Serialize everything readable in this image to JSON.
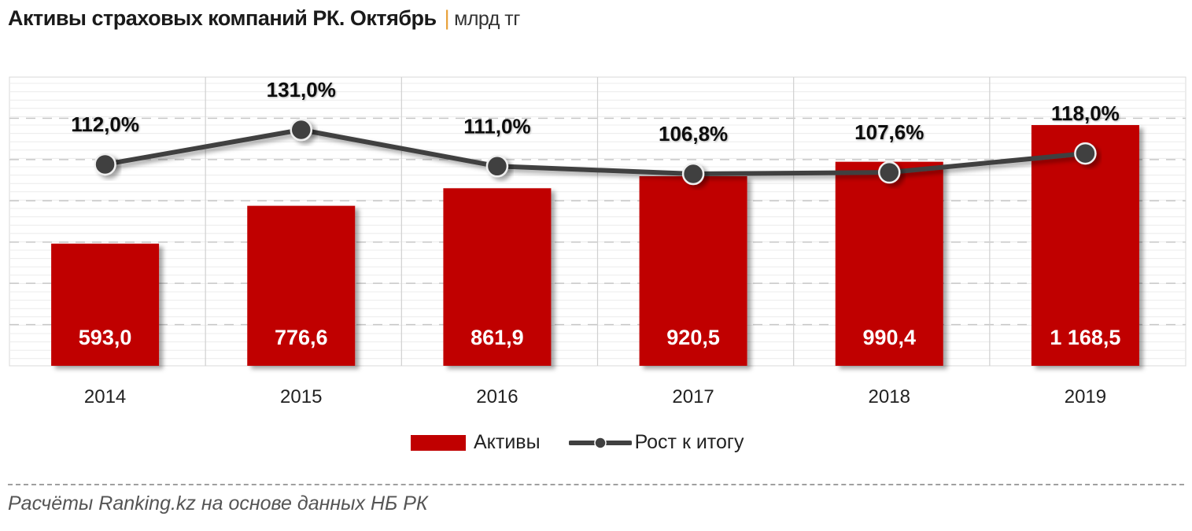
{
  "title": {
    "main": "Активы страховых компаний РК. Октябрь",
    "separator": "|",
    "unit": "млрд тг"
  },
  "legend": {
    "bars_label": "Активы",
    "line_label": "Рост к итогу"
  },
  "source": "Расчёты Ranking.kz на основе данных НБ РК",
  "colors": {
    "bar": "#c00000",
    "line": "#404040",
    "bar_label": "#ffffff",
    "line_label": "#111111",
    "separator": "#e8a13a"
  },
  "chart_data": {
    "type": "bar+line",
    "title": "Активы страховых компаний РК. Октябрь | млрд тг",
    "categories": [
      "2014",
      "2015",
      "2016",
      "2017",
      "2018",
      "2019"
    ],
    "series": [
      {
        "name": "Активы",
        "type": "bar",
        "axis": "primary",
        "values": [
          593.0,
          776.6,
          861.9,
          920.5,
          990.4,
          1168.5
        ],
        "labels": [
          "593,0",
          "776,6",
          "861,9",
          "920,5",
          "990,4",
          "1 168,5"
        ]
      },
      {
        "name": "Рост к итогу",
        "type": "line",
        "axis": "secondary",
        "values": [
          112.0,
          131.0,
          111.0,
          106.8,
          107.6,
          118.0
        ],
        "labels": [
          "112,0%",
          "131,0%",
          "111,0%",
          "106,8%",
          "107,6%",
          "118,0%"
        ]
      }
    ],
    "xlabel": "",
    "ylabel": "млрд тг",
    "grid": true,
    "legend_position": "bottom",
    "axes_visible": false
  }
}
